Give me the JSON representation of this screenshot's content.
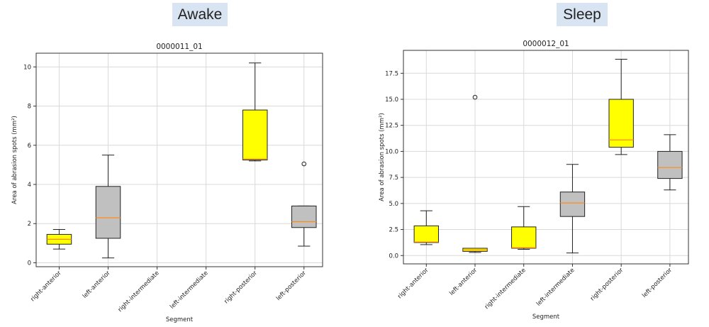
{
  "panel_labels": {
    "left": "Awake",
    "right": "Sleep"
  },
  "chart_data": [
    {
      "type": "box",
      "title": "0000011_01",
      "xlabel": "Segment",
      "ylabel": "Area of abrasion spots (mm²)",
      "ylim": [
        -0.2,
        10.7
      ],
      "yticks": [
        0,
        2,
        4,
        6,
        8,
        10
      ],
      "grid": true,
      "categories": [
        "right-anterior",
        "left-anterior",
        "right-intermediate",
        "left-intermediate",
        "right-posterior",
        "left-posterior"
      ],
      "boxes": [
        {
          "whislo": 0.7,
          "q1": 0.95,
          "med": 1.2,
          "q3": 1.45,
          "whishi": 1.7,
          "fliers": [],
          "color": "#ffff00"
        },
        {
          "whislo": 0.25,
          "q1": 1.25,
          "med": 2.3,
          "q3": 3.9,
          "whishi": 5.5,
          "fliers": [],
          "color": "#c0c0c0"
        },
        null,
        null,
        {
          "whislo": 5.2,
          "q1": 5.25,
          "med": 5.3,
          "q3": 7.8,
          "whishi": 10.2,
          "fliers": [],
          "color": "#ffff00"
        },
        {
          "whislo": 0.85,
          "q1": 1.8,
          "med": 2.1,
          "q3": 2.9,
          "whishi": 2.9,
          "fliers": [
            5.05
          ],
          "color": "#c0c0c0"
        }
      ]
    },
    {
      "type": "box",
      "title": "0000012_01",
      "xlabel": "Segment",
      "ylabel": "Area of abrasion spots (mm²)",
      "ylim": [
        -0.8,
        19.7
      ],
      "yticks": [
        0.0,
        2.5,
        5.0,
        7.5,
        10.0,
        12.5,
        15.0,
        17.5
      ],
      "grid": true,
      "categories": [
        "right-anterior",
        "left-anterior",
        "right-intermediate",
        "left-intermediate",
        "right-posterior",
        "left-posterior"
      ],
      "boxes": [
        {
          "whislo": 1.05,
          "q1": 1.25,
          "med": 1.3,
          "q3": 2.85,
          "whishi": 4.3,
          "fliers": [],
          "color": "#ffff00"
        },
        {
          "whislo": 0.3,
          "q1": 0.4,
          "med": 0.55,
          "q3": 0.7,
          "whishi": 0.7,
          "fliers": [
            15.2
          ],
          "color": "#ffff00"
        },
        {
          "whislo": 0.6,
          "q1": 0.7,
          "med": 0.75,
          "q3": 2.75,
          "whishi": 4.7,
          "fliers": [],
          "color": "#ffff00"
        },
        {
          "whislo": 0.25,
          "q1": 3.75,
          "med": 5.05,
          "q3": 6.1,
          "whishi": 8.75,
          "fliers": [],
          "color": "#c0c0c0"
        },
        {
          "whislo": 9.7,
          "q1": 10.4,
          "med": 11.1,
          "q3": 15.0,
          "whishi": 18.85,
          "fliers": [],
          "color": "#ffff00"
        },
        {
          "whislo": 6.3,
          "q1": 7.4,
          "med": 8.45,
          "q3": 10.0,
          "whishi": 11.6,
          "fliers": [],
          "color": "#c0c0c0"
        }
      ]
    }
  ]
}
